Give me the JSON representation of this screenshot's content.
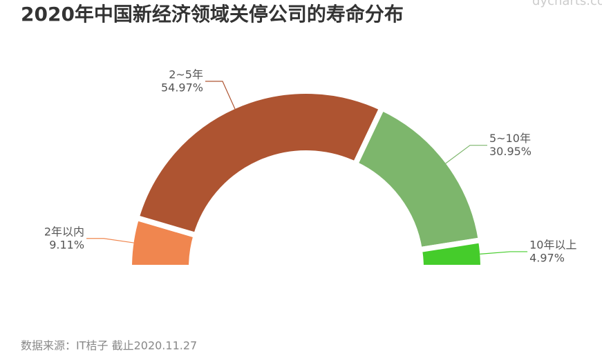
{
  "chart_data": {
    "type": "pie",
    "title": "2020年中国新经济领域关停公司的寿命分布",
    "categories": [
      "2年以内",
      "2~5年",
      "5~10年",
      "10年以上"
    ],
    "values": [
      9.11,
      54.97,
      30.95,
      4.97
    ],
    "value_labels": [
      "9.11%",
      "54.97%",
      "30.95%",
      "4.97%"
    ],
    "colors": [
      "#f0864f",
      "#ae5431",
      "#7db66c",
      "#45cc2b"
    ],
    "source": "数据来源：IT桔子 截止2020.11.27",
    "watermark": "dycharts.com"
  }
}
